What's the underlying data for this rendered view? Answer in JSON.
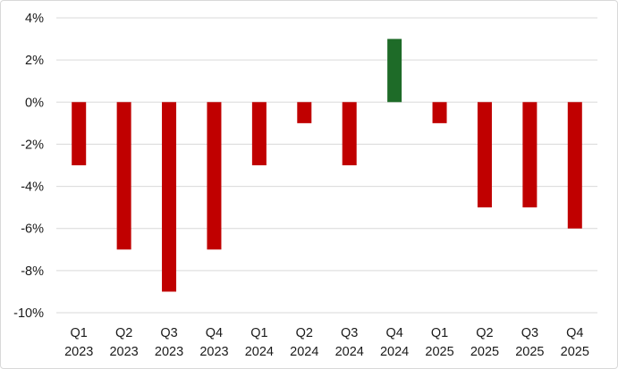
{
  "chart_data": {
    "type": "bar",
    "categories": [
      [
        "Q1",
        "2023"
      ],
      [
        "Q2",
        "2023"
      ],
      [
        "Q3",
        "2023"
      ],
      [
        "Q4",
        "2023"
      ],
      [
        "Q1",
        "2024"
      ],
      [
        "Q2",
        "2024"
      ],
      [
        "Q3",
        "2024"
      ],
      [
        "Q4",
        "2024"
      ],
      [
        "Q1",
        "2025"
      ],
      [
        "Q2",
        "2025"
      ],
      [
        "Q3",
        "2025"
      ],
      [
        "Q4",
        "2025"
      ]
    ],
    "values": [
      -3,
      -7,
      -9,
      -7,
      -3,
      -1,
      -3,
      3,
      -1,
      -5,
      -5,
      -6
    ],
    "unit": "%",
    "ylim": [
      -10,
      4
    ],
    "yticks": [
      4,
      2,
      0,
      -2,
      -4,
      -6,
      -8,
      -10
    ],
    "ytick_labels": [
      "4%",
      "2%",
      "0%",
      "-2%",
      "-4%",
      "-6%",
      "-8%",
      "-10%"
    ],
    "grid": true,
    "legend": "none",
    "colors": {
      "positive": "#1e6b28",
      "negative": "#c00000",
      "grid": "#d9d9d9"
    }
  }
}
